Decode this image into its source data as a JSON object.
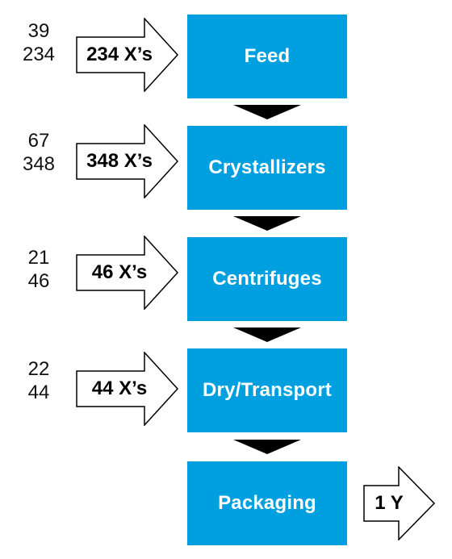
{
  "colors": {
    "box_fill": "#009fe0",
    "box_text": "#ffffff",
    "arrow_fill": "#000000"
  },
  "stages": [
    {
      "label": "Feed",
      "arrow_label": "234 X’s",
      "num_top": "39",
      "num_bottom": "234"
    },
    {
      "label": "Crystallizers",
      "arrow_label": "348 X’s",
      "num_top": "67",
      "num_bottom": "348"
    },
    {
      "label": "Centrifuges",
      "arrow_label": "46 X’s",
      "num_top": "21",
      "num_bottom": "46"
    },
    {
      "label": "Dry/Transport",
      "arrow_label": "44 X’s",
      "num_top": "22",
      "num_bottom": "44"
    },
    {
      "label": "Packaging"
    }
  ],
  "output": {
    "label": "1 Y"
  }
}
